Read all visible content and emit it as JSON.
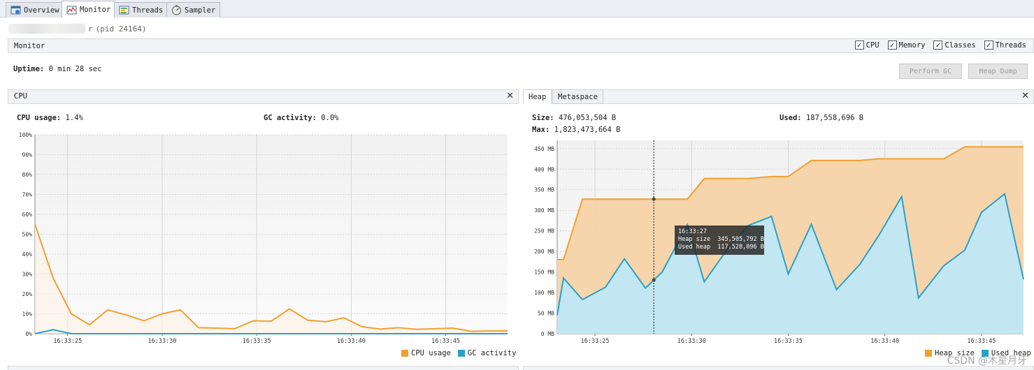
{
  "tabs": [
    {
      "label": "Overview",
      "icon": "overview-icon"
    },
    {
      "label": "Monitor",
      "icon": "monitor-icon"
    },
    {
      "label": "Threads",
      "icon": "threads-icon"
    },
    {
      "label": "Sampler",
      "icon": "sampler-icon"
    }
  ],
  "active_tab": "Monitor",
  "process": {
    "name_suffix": "r",
    "pid_text": "(pid 24164)"
  },
  "monitor": {
    "title": "Monitor",
    "checkboxes": [
      {
        "label": "CPU",
        "checked": true
      },
      {
        "label": "Memory",
        "checked": true
      },
      {
        "label": "Classes",
        "checked": true
      },
      {
        "label": "Threads",
        "checked": true
      }
    ],
    "uptime_label": "Uptime:",
    "uptime_value": "0 min 28 sec",
    "perform_gc_label": "Perform GC",
    "heap_dump_label": "Heap Dump"
  },
  "cpu_panel": {
    "title": "CPU",
    "close": "✕",
    "cpu_usage_label": "CPU usage:",
    "cpu_usage_value": "1.4%",
    "gc_activity_label": "GC activity:",
    "gc_activity_value": "0.0%",
    "legend": [
      {
        "label": "CPU usage",
        "color": "#f0a030"
      },
      {
        "label": "GC activity",
        "color": "#2aa0c8"
      }
    ]
  },
  "memory_panel": {
    "tabs": [
      "Heap",
      "Metaspace"
    ],
    "close": "✕",
    "size_label": "Size:",
    "size_value": "476,053,504 B",
    "used_label": "Used:",
    "used_value": "187,558,696 B",
    "max_label": "Max:",
    "max_value": "1,823,473,664 B",
    "legend": [
      {
        "label": "Heap size",
        "color": "#f0a030"
      },
      {
        "label": "Used heap",
        "color": "#2aa0c8"
      }
    ],
    "tooltip": {
      "time": "16:33:27",
      "heap_size": "Heap size  345,505,792 B",
      "used_heap": "Used heap  117,528,096 B"
    }
  },
  "watermark": "CSDN @木星月牙",
  "chart_data": [
    {
      "type": "line",
      "title": "CPU",
      "y_ticks": [
        "0%",
        "10%",
        "20%",
        "30%",
        "40%",
        "50%",
        "60%",
        "70%",
        "80%",
        "90%",
        "100%"
      ],
      "x_ticks": [
        "16:33:25",
        "16:33:30",
        "16:33:35",
        "16:33:40",
        "16:33:45"
      ],
      "ylim": [
        0,
        100
      ],
      "series": [
        {
          "name": "CPU usage",
          "color": "#f0a030",
          "x": [
            0,
            1,
            2,
            3,
            4,
            5,
            6,
            7,
            8,
            9,
            10,
            11,
            12,
            13,
            14,
            15,
            16,
            17,
            18,
            19,
            20,
            21,
            22,
            23,
            24,
            25,
            26
          ],
          "values": [
            55,
            28,
            10,
            4.5,
            12,
            9.5,
            6.5,
            10,
            12,
            3,
            2.8,
            2.5,
            6.5,
            6.3,
            12.5,
            6.8,
            6,
            8,
            3.5,
            2.3,
            3,
            2.2,
            2.5,
            2.8,
            1.2,
            1.4,
            1.4
          ]
        },
        {
          "name": "GC activity",
          "color": "#2aa0c8",
          "x": [
            0,
            1,
            2,
            3,
            4,
            5,
            6,
            7,
            8,
            9,
            10,
            11,
            12,
            13,
            14,
            15,
            16,
            17,
            18,
            19,
            20,
            21,
            22,
            23,
            24,
            25,
            26
          ],
          "values": [
            0,
            2,
            0,
            0,
            0,
            0,
            0,
            0,
            0,
            0,
            0,
            0,
            0,
            0,
            0,
            0,
            0,
            0,
            0,
            0,
            0,
            0,
            0,
            0,
            0,
            0,
            0
          ]
        }
      ]
    },
    {
      "type": "area",
      "title": "Heap",
      "y_ticks": [
        "0 MB",
        "50 MB",
        "100 MB",
        "150 MB",
        "200 MB",
        "250 MB",
        "300 MB",
        "350 MB",
        "400 MB",
        "450 MB"
      ],
      "x_ticks": [
        "16:33:25",
        "16:33:30",
        "16:33:35",
        "16:33:40",
        "16:33:45"
      ],
      "ylim": [
        0,
        470
      ],
      "series": [
        {
          "name": "Heap size",
          "color": "#f0a030",
          "x": [
            0,
            0.3,
            1.2,
            2.3,
            3.2,
            4.2,
            5.0,
            6.2,
            7.0,
            8.1,
            9.1,
            10.2,
            11.0,
            12.1,
            13.3,
            14.4,
            15.3,
            16.4,
            17.2,
            18.4,
            19.4,
            20.2,
            21.3,
            22.2
          ],
          "values": [
            180,
            180,
            327,
            327,
            327,
            327,
            327,
            327,
            377,
            377,
            377,
            382,
            382,
            421,
            421,
            421,
            425,
            425,
            425,
            425,
            454,
            454,
            454,
            454
          ]
        },
        {
          "name": "Used heap",
          "color": "#2aa0c8",
          "x": [
            0,
            0.3,
            1.2,
            2.3,
            3.2,
            4.2,
            5.0,
            6.2,
            7.0,
            8.1,
            9.1,
            10.2,
            11.0,
            12.1,
            13.3,
            14.4,
            15.3,
            16.4,
            17.2,
            18.4,
            19.4,
            20.2,
            21.3,
            22.2
          ],
          "values": [
            45,
            135,
            83,
            113,
            182,
            111,
            150,
            265,
            126,
            205,
            263,
            285,
            145,
            266,
            107,
            168,
            238,
            333,
            87,
            165,
            203,
            295,
            340,
            132
          ]
        }
      ]
    }
  ]
}
